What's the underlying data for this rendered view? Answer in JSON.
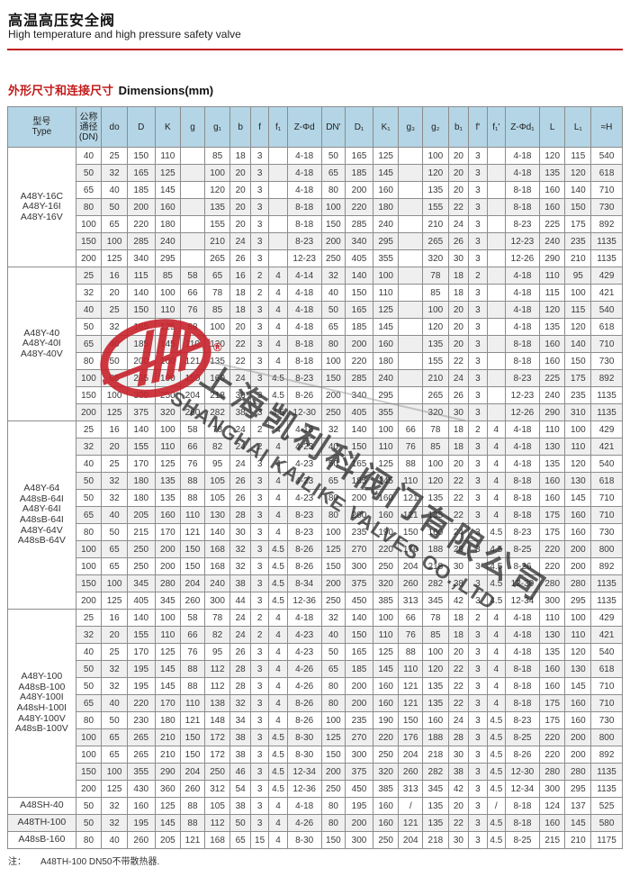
{
  "page": {
    "title_zh": "高温高压安全阀",
    "title_en": "High temperature and high pressure safety valve",
    "section_title_zh": "外形尺寸和连接尺寸",
    "section_title_en": "Dimensions(mm)",
    "note_label": "注：",
    "note_text": "A48TH-100  DN50不带散热器.",
    "accent_color": "#c31b1b",
    "header_bg": "#b4d5e5"
  },
  "watermark": {
    "company_zh": "上海凯利科阀门有限公司",
    "company_en": "SHANGHAI KAILIKE VALVES CO.,LTD",
    "logo_icon": "kailike-logo",
    "registered_mark": "®",
    "logo_color": "#c8232c"
  },
  "table": {
    "type_header": [
      "型号",
      "Type"
    ],
    "dn_header": [
      "公称",
      "通径",
      "(DN)"
    ],
    "columns": [
      "do",
      "D",
      "K",
      "g",
      "g₁",
      "b",
      "f",
      "f₁",
      "Z-Φd",
      "DN'",
      "D₁",
      "K₁",
      "g₃",
      "g₂",
      "b₁",
      "f'",
      "f₁'",
      "Z-Φd₁",
      "L",
      "L₁",
      "≈H"
    ],
    "groups": [
      {
        "models": [
          "A48Y-16C",
          "A48Y-16I",
          "A48Y-16V"
        ],
        "rows": [
          [
            40,
            25,
            150,
            110,
            "",
            85,
            18,
            3,
            "",
            "4-18",
            50,
            165,
            125,
            "",
            100,
            20,
            3,
            "",
            "4-18",
            120,
            115,
            540
          ],
          [
            50,
            32,
            165,
            125,
            "",
            100,
            20,
            3,
            "",
            "4-18",
            65,
            185,
            145,
            "",
            120,
            20,
            3,
            "",
            "4-18",
            135,
            120,
            618
          ],
          [
            65,
            40,
            185,
            145,
            "",
            120,
            20,
            3,
            "",
            "4-18",
            80,
            200,
            160,
            "",
            135,
            20,
            3,
            "",
            "8-18",
            160,
            140,
            710
          ],
          [
            80,
            50,
            200,
            160,
            "",
            135,
            20,
            3,
            "",
            "8-18",
            100,
            220,
            180,
            "",
            155,
            22,
            3,
            "",
            "8-18",
            160,
            150,
            730
          ],
          [
            100,
            65,
            220,
            180,
            "",
            155,
            20,
            3,
            "",
            "8-18",
            150,
            285,
            240,
            "",
            210,
            24,
            3,
            "",
            "8-23",
            225,
            175,
            892
          ],
          [
            150,
            100,
            285,
            240,
            "",
            210,
            24,
            3,
            "",
            "8-23",
            200,
            340,
            295,
            "",
            265,
            26,
            3,
            "",
            "12-23",
            240,
            235,
            1135
          ],
          [
            200,
            125,
            340,
            295,
            "",
            265,
            26,
            3,
            "",
            "12-23",
            250,
            405,
            355,
            "",
            320,
            30,
            3,
            "",
            "12-26",
            290,
            210,
            1135
          ]
        ]
      },
      {
        "models": [
          "A48Y-40",
          "A48Y-40I",
          "A48Y-40V"
        ],
        "rows": [
          [
            25,
            16,
            115,
            85,
            58,
            65,
            16,
            2,
            4,
            "4-14",
            32,
            140,
            100,
            "",
            78,
            18,
            2,
            "",
            "4-18",
            110,
            95,
            429
          ],
          [
            32,
            20,
            140,
            100,
            66,
            78,
            18,
            2,
            4,
            "4-18",
            40,
            150,
            110,
            "",
            85,
            18,
            3,
            "",
            "4-18",
            115,
            100,
            421
          ],
          [
            40,
            25,
            150,
            110,
            76,
            85,
            18,
            3,
            4,
            "4-18",
            50,
            165,
            125,
            "",
            100,
            20,
            3,
            "",
            "4-18",
            120,
            115,
            540
          ],
          [
            50,
            32,
            165,
            125,
            88,
            100,
            20,
            3,
            4,
            "4-18",
            65,
            185,
            145,
            "",
            120,
            20,
            3,
            "",
            "4-18",
            135,
            120,
            618
          ],
          [
            65,
            40,
            185,
            145,
            110,
            120,
            22,
            3,
            4,
            "8-18",
            80,
            200,
            160,
            "",
            135,
            20,
            3,
            "",
            "8-18",
            160,
            140,
            710
          ],
          [
            80,
            50,
            200,
            160,
            121,
            135,
            22,
            3,
            4,
            "8-18",
            100,
            220,
            180,
            "",
            155,
            22,
            3,
            "",
            "8-18",
            160,
            150,
            730
          ],
          [
            100,
            65,
            235,
            190,
            150,
            160,
            24,
            3,
            4.5,
            "8-23",
            150,
            285,
            240,
            "",
            210,
            24,
            3,
            "",
            "8-23",
            225,
            175,
            892
          ],
          [
            150,
            100,
            300,
            250,
            204,
            218,
            30,
            3,
            4.5,
            "8-26",
            200,
            340,
            295,
            "",
            265,
            26,
            3,
            "",
            "12-23",
            240,
            235,
            1135
          ],
          [
            200,
            125,
            375,
            320,
            260,
            282,
            38,
            3,
            4.5,
            "12-30",
            250,
            405,
            355,
            "",
            320,
            30,
            3,
            "",
            "12-26",
            290,
            310,
            1135
          ]
        ]
      },
      {
        "models": [
          "A48Y-64",
          "A48sB-64I",
          "A48Y-64I",
          "A48sB-64I",
          "A48Y-64V",
          "A48sB-64V"
        ],
        "rows": [
          [
            25,
            16,
            140,
            100,
            58,
            78,
            24,
            2,
            4,
            "4-18",
            32,
            140,
            100,
            66,
            78,
            18,
            2,
            4,
            "4-18",
            110,
            100,
            429
          ],
          [
            32,
            20,
            155,
            110,
            66,
            82,
            24,
            2,
            4,
            "4-23",
            40,
            150,
            110,
            76,
            85,
            18,
            3,
            4,
            "4-18",
            130,
            110,
            421
          ],
          [
            40,
            25,
            170,
            125,
            76,
            95,
            24,
            3,
            4,
            "4-23",
            50,
            165,
            125,
            88,
            100,
            20,
            3,
            4,
            "4-18",
            135,
            120,
            540
          ],
          [
            50,
            32,
            180,
            135,
            88,
            105,
            26,
            3,
            4,
            "4-23",
            65,
            185,
            145,
            110,
            120,
            22,
            3,
            4,
            "8-18",
            160,
            130,
            618
          ],
          [
            50,
            32,
            180,
            135,
            88,
            105,
            26,
            3,
            4,
            "4-23",
            80,
            200,
            160,
            121,
            135,
            22,
            3,
            4,
            "8-18",
            160,
            145,
            710
          ],
          [
            65,
            40,
            205,
            160,
            110,
            130,
            28,
            3,
            4,
            "8-23",
            80,
            200,
            160,
            121,
            135,
            22,
            3,
            4,
            "8-18",
            175,
            160,
            710
          ],
          [
            80,
            50,
            215,
            170,
            121,
            140,
            30,
            3,
            4,
            "8-23",
            100,
            235,
            190,
            150,
            160,
            24,
            3,
            4.5,
            "8-23",
            175,
            160,
            730
          ],
          [
            100,
            65,
            250,
            200,
            150,
            168,
            32,
            3,
            4.5,
            "8-26",
            125,
            270,
            220,
            176,
            188,
            28,
            3,
            4.5,
            "8-25",
            220,
            200,
            800
          ],
          [
            100,
            65,
            250,
            200,
            150,
            168,
            32,
            3,
            4.5,
            "8-26",
            150,
            300,
            250,
            204,
            218,
            30,
            3,
            4.5,
            "8-26",
            220,
            200,
            892
          ],
          [
            150,
            100,
            345,
            280,
            204,
            240,
            38,
            3,
            4.5,
            "8-34",
            200,
            375,
            320,
            260,
            282,
            38,
            3,
            4.5,
            "12-30",
            280,
            280,
            1135
          ],
          [
            200,
            125,
            405,
            345,
            260,
            300,
            44,
            3,
            4.5,
            "12-36",
            250,
            450,
            385,
            313,
            345,
            42,
            3,
            4.5,
            "12-34",
            300,
            295,
            1135
          ]
        ]
      },
      {
        "models": [
          "A48Y-100",
          "A48sB-100",
          "A48Y-100I",
          "A48sH-100I",
          "A48Y-100V",
          "A48sB-100V"
        ],
        "rows": [
          [
            25,
            16,
            140,
            100,
            58,
            78,
            24,
            2,
            4,
            "4-18",
            32,
            140,
            100,
            66,
            78,
            18,
            2,
            4,
            "4-18",
            110,
            100,
            429
          ],
          [
            32,
            20,
            155,
            110,
            66,
            82,
            24,
            2,
            4,
            "4-23",
            40,
            150,
            110,
            76,
            85,
            18,
            3,
            4,
            "4-18",
            130,
            110,
            421
          ],
          [
            40,
            25,
            170,
            125,
            76,
            95,
            26,
            3,
            4,
            "4-23",
            50,
            165,
            125,
            88,
            100,
            20,
            3,
            4,
            "4-18",
            135,
            120,
            540
          ],
          [
            50,
            32,
            195,
            145,
            88,
            112,
            28,
            3,
            4,
            "4-26",
            65,
            185,
            145,
            110,
            120,
            22,
            3,
            4,
            "8-18",
            160,
            130,
            618
          ],
          [
            50,
            32,
            195,
            145,
            88,
            112,
            28,
            3,
            4,
            "4-26",
            80,
            200,
            160,
            121,
            135,
            22,
            3,
            4,
            "8-18",
            160,
            145,
            710
          ],
          [
            65,
            40,
            220,
            170,
            110,
            138,
            32,
            3,
            4,
            "8-26",
            80,
            200,
            160,
            121,
            135,
            22,
            3,
            4,
            "8-18",
            175,
            160,
            710
          ],
          [
            80,
            50,
            230,
            180,
            121,
            148,
            34,
            3,
            4,
            "8-26",
            100,
            235,
            190,
            150,
            160,
            24,
            3,
            4.5,
            "8-23",
            175,
            160,
            730
          ],
          [
            100,
            65,
            265,
            210,
            150,
            172,
            38,
            3,
            4.5,
            "8-30",
            125,
            270,
            220,
            176,
            188,
            28,
            3,
            4.5,
            "8-25",
            220,
            200,
            800
          ],
          [
            100,
            65,
            265,
            210,
            150,
            172,
            38,
            3,
            4.5,
            "8-30",
            150,
            300,
            250,
            204,
            218,
            30,
            3,
            4.5,
            "8-26",
            220,
            200,
            892
          ],
          [
            150,
            100,
            355,
            290,
            204,
            250,
            46,
            3,
            4.5,
            "12-34",
            200,
            375,
            320,
            260,
            282,
            38,
            3,
            4.5,
            "12-30",
            280,
            280,
            1135
          ],
          [
            200,
            125,
            430,
            360,
            260,
            312,
            54,
            3,
            4.5,
            "12-36",
            250,
            450,
            385,
            313,
            345,
            42,
            3,
            4.5,
            "12-34",
            300,
            295,
            1135
          ]
        ]
      },
      {
        "models": [
          "A48SH-40"
        ],
        "rows": [
          [
            50,
            32,
            160,
            125,
            88,
            105,
            38,
            3,
            4,
            "4-18",
            80,
            195,
            160,
            "/",
            135,
            20,
            3,
            "/",
            "8-18",
            124,
            137,
            525
          ]
        ]
      },
      {
        "models": [
          "A48TH-100"
        ],
        "rows": [
          [
            50,
            32,
            195,
            145,
            88,
            112,
            50,
            3,
            4,
            "4-26",
            80,
            200,
            160,
            121,
            135,
            22,
            3,
            4.5,
            "8-18",
            160,
            145,
            580
          ]
        ]
      },
      {
        "models": [
          "A48sB-160"
        ],
        "rows": [
          [
            80,
            40,
            260,
            205,
            121,
            168,
            65,
            15,
            4,
            "8-30",
            150,
            300,
            250,
            204,
            218,
            30,
            3,
            4.5,
            "8-25",
            215,
            210,
            1175
          ]
        ]
      }
    ]
  }
}
